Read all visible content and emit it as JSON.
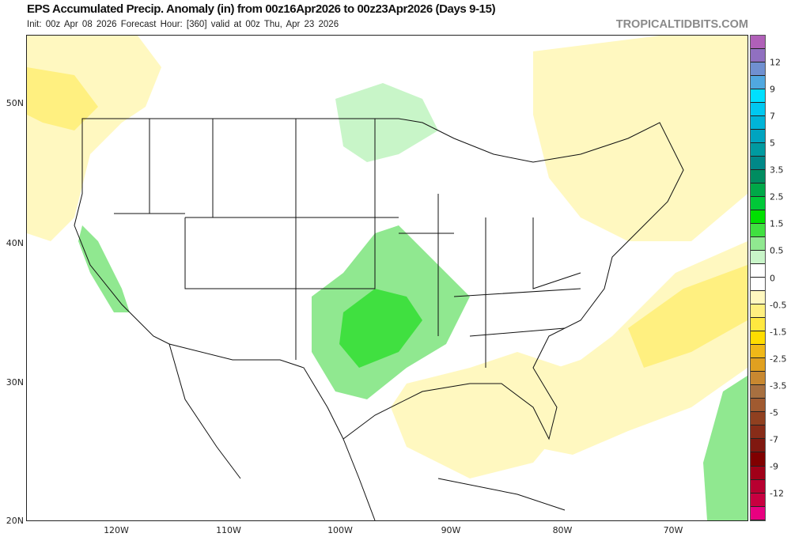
{
  "header": {
    "title": "EPS Accumulated Precip. Anomaly (in) from 00z16Apr2026 to 00z23Apr2026 (Days 9-15)",
    "subtitle": "Init: 00z Apr 08 2026   Forecast Hour: [360]   valid at 00z Thu, Apr 23 2026",
    "brand": "TROPICALTIDBITS.COM"
  },
  "map": {
    "lat_labels": [
      "50N",
      "40N",
      "30N",
      "20N"
    ],
    "lon_labels": [
      "120W",
      "110W",
      "100W",
      "90W",
      "80W",
      "70W"
    ],
    "colors": {
      "wet_light": "#c8f5c8",
      "wet": "#90e890",
      "wet_strong": "#40e040",
      "dry_light": "#fff8c0",
      "dry": "#fff080"
    }
  },
  "colorbar": {
    "units": "in",
    "colors": [
      "#b060b8",
      "#9070c0",
      "#7090d0",
      "#50a8e0",
      "#00e0ff",
      "#00c8f0",
      "#00b4d8",
      "#00a4c0",
      "#009aa0",
      "#008888",
      "#008c60",
      "#00a848",
      "#00c838",
      "#00e000",
      "#40e040",
      "#90e890",
      "#c8f5c8",
      "#ffffff",
      "#ffffff",
      "#fff8c0",
      "#fff080",
      "#ffe840",
      "#ffdc00",
      "#f0b818",
      "#e0a020",
      "#c88830",
      "#a87040",
      "#a05a30",
      "#904020",
      "#882c18",
      "#801810",
      "#800000",
      "#a00018",
      "#b80030",
      "#c80040",
      "#e80080"
    ],
    "labels": [
      "12",
      "9",
      "7",
      "5",
      "3.5",
      "2.5",
      "1.5",
      "0.5",
      "0",
      "-0.5",
      "-1.5",
      "-2.5",
      "-3.5",
      "-5",
      "-7",
      "-9",
      "-12"
    ]
  }
}
